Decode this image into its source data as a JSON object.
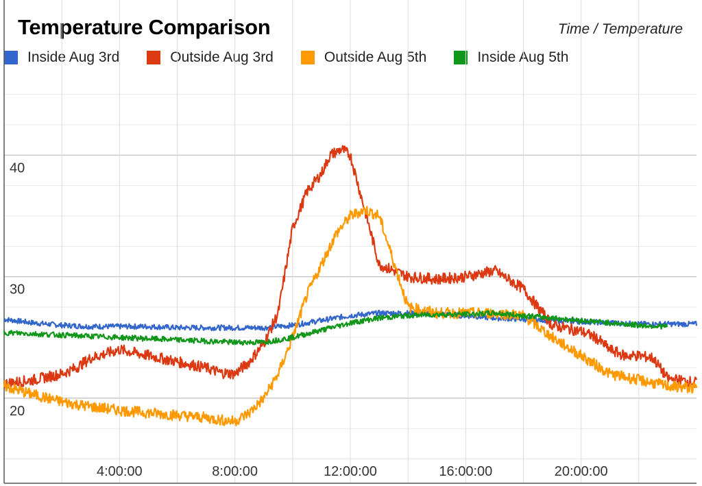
{
  "chart_data": {
    "type": "line",
    "title": "Temperature Comparison",
    "subtitle": "Time / Temperature",
    "legend_position": "top",
    "grid": true,
    "xlim": [
      0,
      24
    ],
    "ylim": [
      13,
      46
    ],
    "x_ticks": [
      {
        "value": 4,
        "label": "4:00:00"
      },
      {
        "value": 8,
        "label": "8:00:00"
      },
      {
        "value": 12,
        "label": "12:00:00"
      },
      {
        "value": 16,
        "label": "16:00:00"
      },
      {
        "value": 20,
        "label": "20:00:00"
      }
    ],
    "y_ticks": [
      {
        "value": 20,
        "label": "20"
      },
      {
        "value": 30,
        "label": "30"
      },
      {
        "value": 40,
        "label": "40"
      }
    ],
    "series": [
      {
        "name": "Inside Aug 3rd",
        "color": "#3366cc",
        "x": [
          0,
          1,
          2,
          3,
          4,
          5,
          6,
          7,
          8,
          9,
          10,
          11,
          12,
          13,
          14,
          15,
          16,
          17,
          18,
          19,
          20,
          21,
          22,
          23,
          24
        ],
        "y": [
          26.5,
          26.2,
          26.0,
          25.9,
          25.9,
          25.9,
          25.8,
          25.8,
          25.8,
          25.8,
          26.0,
          26.4,
          26.8,
          27.0,
          27.0,
          26.9,
          26.8,
          26.6,
          26.5,
          26.4,
          26.3,
          26.2,
          26.1,
          26.1,
          26.1
        ]
      },
      {
        "name": "Outside Aug 3rd",
        "color": "#dc3912",
        "x": [
          0,
          1,
          2,
          2.5,
          3,
          4,
          5,
          6,
          7,
          7.5,
          8,
          8.5,
          9,
          9.5,
          10,
          10.5,
          11,
          11.3,
          11.7,
          12,
          12.5,
          13,
          14,
          15,
          16,
          17,
          18,
          19,
          20,
          20.5,
          21,
          21.5,
          22,
          22.5,
          23,
          24
        ],
        "y": [
          21.2,
          21.5,
          22.0,
          22.5,
          23.3,
          24.0,
          23.5,
          23.0,
          22.5,
          22.1,
          22.0,
          23.0,
          24.5,
          27.0,
          34.0,
          37.0,
          38.5,
          40.0,
          40.5,
          40.0,
          35.5,
          31.0,
          30.0,
          29.8,
          30.0,
          30.5,
          29.0,
          26.0,
          25.5,
          25.0,
          24.0,
          23.5,
          23.5,
          23.3,
          21.6,
          21.3
        ]
      },
      {
        "name": "Outside Aug 5th",
        "color": "#ff9900",
        "x": [
          0,
          1,
          2,
          3,
          4,
          5,
          6,
          7,
          7.5,
          8,
          8.5,
          9,
          9.5,
          10,
          10.5,
          11,
          11.5,
          12,
          12.5,
          13,
          14,
          15,
          16,
          17,
          18,
          19,
          20,
          21,
          22,
          23,
          24
        ],
        "y": [
          21.0,
          20.3,
          19.7,
          19.3,
          19.0,
          18.8,
          18.6,
          18.4,
          18.2,
          18.1,
          18.8,
          20.0,
          22.0,
          25.0,
          28.5,
          31.0,
          33.5,
          35.0,
          35.5,
          35.0,
          27.5,
          27.0,
          27.0,
          27.0,
          26.8,
          25.0,
          23.5,
          22.0,
          21.5,
          21.0,
          20.8
        ]
      },
      {
        "name": "Inside Aug 5th",
        "color": "#109618",
        "x": [
          0,
          1,
          2,
          3,
          4,
          5,
          6,
          7,
          8,
          9,
          10,
          11,
          12,
          13,
          14,
          15,
          16,
          17,
          18,
          19,
          20,
          21,
          22,
          23
        ],
        "y": [
          25.4,
          25.3,
          25.2,
          25.1,
          25.0,
          24.9,
          24.8,
          24.7,
          24.6,
          24.6,
          25.0,
          25.6,
          26.2,
          26.6,
          26.8,
          26.9,
          26.9,
          27.0,
          26.8,
          26.6,
          26.4,
          26.2,
          26.0,
          25.9
        ]
      }
    ]
  }
}
